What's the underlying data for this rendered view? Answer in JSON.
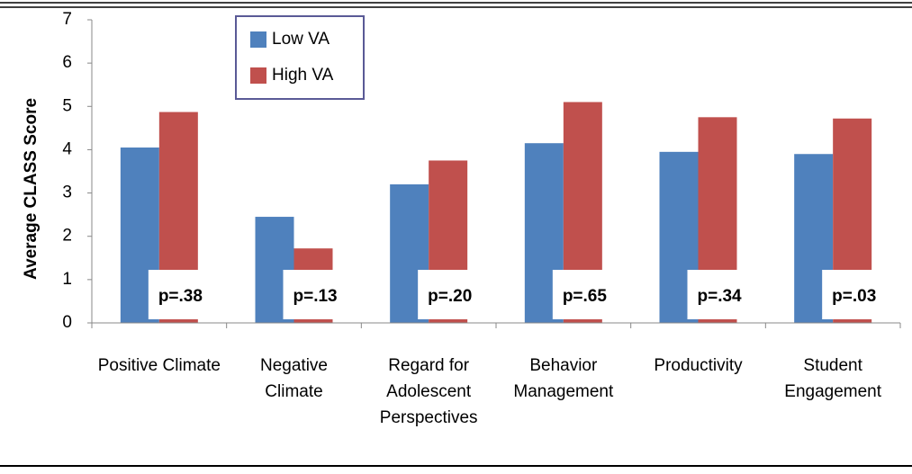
{
  "chart_data": {
    "type": "bar",
    "y_label": "Average CLASS Score",
    "categories": [
      "Positive Climate",
      "Negative Climate",
      "Regard for Adolescent Perspectives",
      "Behavior Management",
      "Productivity",
      "Student Engagement"
    ],
    "series": [
      {
        "name": "Low VA",
        "color": "#4f81bd",
        "values": [
          4.05,
          2.45,
          3.2,
          4.15,
          3.95,
          3.9
        ]
      },
      {
        "name": "High VA",
        "color": "#c0504d",
        "values": [
          4.87,
          1.72,
          3.75,
          5.1,
          4.75,
          4.72
        ]
      }
    ],
    "annotations": [
      "p=.38",
      "p=.13",
      "p=.20",
      "p=.65",
      "p=.34",
      "p=.03"
    ],
    "ylim": [
      0,
      7
    ],
    "yticks": [
      0,
      1,
      2,
      3,
      4,
      5,
      6,
      7
    ]
  }
}
